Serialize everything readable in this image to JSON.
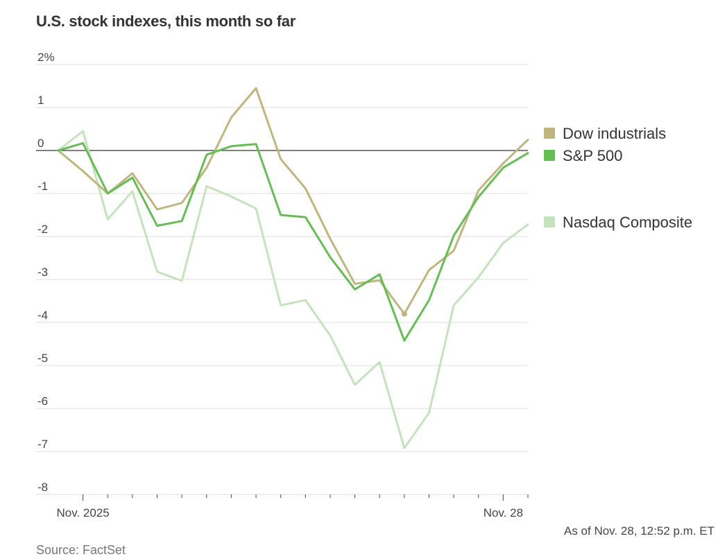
{
  "chart_data": {
    "type": "line",
    "title": "U.S. stock indexes, this month so far",
    "ylim": [
      -8,
      2
    ],
    "yticks": [
      2,
      1,
      0,
      -1,
      -2,
      -3,
      -4,
      -5,
      -6,
      -7,
      -8
    ],
    "ytick_labels": [
      "2%",
      "1",
      "0",
      "-1",
      "-2",
      "-3",
      "-4",
      "-5",
      "-6",
      "-7",
      "-8"
    ],
    "x": [
      0,
      1,
      2,
      3,
      4,
      5,
      6,
      7,
      8,
      9,
      10,
      11,
      12,
      13,
      14,
      15,
      16,
      17,
      18,
      19
    ],
    "xtick_positions": [
      1,
      2,
      3,
      4,
      5,
      6,
      7,
      8,
      9,
      10,
      11,
      12,
      13,
      14,
      15,
      16,
      17,
      18,
      19
    ],
    "xtick_major": [
      1,
      18
    ],
    "xlabels": [
      {
        "x": 1,
        "label": "Nov. 2025"
      },
      {
        "x": 18,
        "label": "Nov. 28"
      }
    ],
    "series": [
      {
        "name": "Nasdaq Composite",
        "color": "#c4e3bd",
        "values": [
          0,
          0.45,
          -1.6,
          -0.95,
          -2.82,
          -3.03,
          -0.83,
          -1.07,
          -1.35,
          -3.6,
          -3.48,
          -4.3,
          -5.45,
          -4.92,
          -6.92,
          -6.1,
          -3.6,
          -2.95,
          -2.15,
          -1.72
        ]
      },
      {
        "name": "Dow industrials",
        "color": "#bfb67f",
        "end_marker_index": 14,
        "values": [
          0,
          -0.48,
          -1.0,
          -0.53,
          -1.37,
          -1.22,
          -0.4,
          0.77,
          1.45,
          -0.2,
          -0.88,
          -2.05,
          -3.1,
          -3.02,
          -3.8,
          -2.78,
          -2.33,
          -0.93,
          -0.3,
          0.25
        ]
      },
      {
        "name": "S&P 500",
        "color": "#66bd55",
        "values": [
          0,
          0.17,
          -1.0,
          -0.63,
          -1.75,
          -1.64,
          -0.1,
          0.1,
          0.15,
          -1.5,
          -1.55,
          -2.48,
          -3.23,
          -2.88,
          -4.42,
          -3.48,
          -1.98,
          -1.08,
          -0.4,
          -0.06
        ]
      }
    ],
    "legend": [
      {
        "label": "Dow industrials",
        "color": "#bfb67f"
      },
      {
        "label": "S&P 500",
        "color": "#66bd55"
      },
      {
        "label": "Nasdaq Composite",
        "color": "#c4e3bd"
      }
    ],
    "legend_position": "right"
  },
  "footer": {
    "source": "Source: FactSet",
    "as_of": "As of Nov. 28, 12:52 p.m. ET"
  }
}
